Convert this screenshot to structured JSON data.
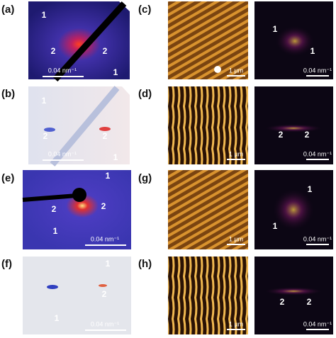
{
  "rows": [
    {
      "diffraction": {
        "label": "(a)",
        "marks": [
          "1",
          "2",
          "2",
          "1"
        ],
        "scale": "0.04 nm⁻¹"
      },
      "afm": {
        "label": "(c)",
        "scale": "1 µm"
      },
      "fft": {
        "marks": [
          "1",
          "1"
        ],
        "scale": "0.04 nm⁻¹"
      }
    },
    {
      "diffraction": {
        "label": "(b)",
        "marks": [
          "1",
          "2",
          "2",
          "1"
        ],
        "scale": "0.04 nm⁻¹"
      },
      "afm": {
        "label": "(d)",
        "scale": "1 µm"
      },
      "fft": {
        "marks": [
          "2",
          "2"
        ],
        "scale": "0.04 nm⁻¹"
      }
    },
    {
      "diffraction": {
        "label": "(e)",
        "marks": [
          "1",
          "2",
          "2",
          "1"
        ],
        "scale": "0.04 nm⁻¹"
      },
      "afm": {
        "label": "(g)",
        "scale": "1 µm"
      },
      "fft": {
        "marks": [
          "1",
          "1"
        ],
        "scale": "0.04 nm⁻¹"
      }
    },
    {
      "diffraction": {
        "label": "(f)",
        "marks": [
          "1",
          "2",
          "1"
        ],
        "scale": "0.04 nm⁻¹"
      },
      "afm": {
        "label": "(h)",
        "scale": "1 µm"
      },
      "fft": {
        "marks": [
          "2",
          "2"
        ],
        "scale": "0.04 nm⁻¹"
      }
    }
  ]
}
